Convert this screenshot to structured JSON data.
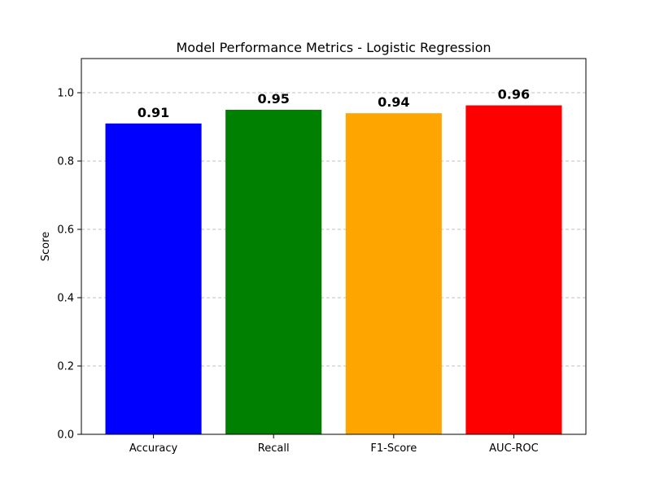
{
  "chart_data": {
    "type": "bar",
    "title": "Model Performance Metrics - Logistic Regression",
    "xlabel": "",
    "ylabel": "Score",
    "categories": [
      "Accuracy",
      "Recall",
      "F1-Score",
      "AUC-ROC"
    ],
    "values": [
      0.91,
      0.95,
      0.94,
      0.963
    ],
    "data_labels": [
      "0.91",
      "0.95",
      "0.94",
      "0.96"
    ],
    "colors": [
      "#0000ff",
      "#008000",
      "#ffa500",
      "#ff0000"
    ],
    "ylim": [
      0,
      1.1
    ],
    "yticks": [
      0.0,
      0.2,
      0.4,
      0.6,
      0.8,
      1.0
    ],
    "ytick_labels": [
      "0.0",
      "0.2",
      "0.4",
      "0.6",
      "0.8",
      "1.0"
    ],
    "grid": {
      "y": true,
      "x": false,
      "style": "dashed",
      "color": "#c0c0c0"
    },
    "legend": "none"
  }
}
